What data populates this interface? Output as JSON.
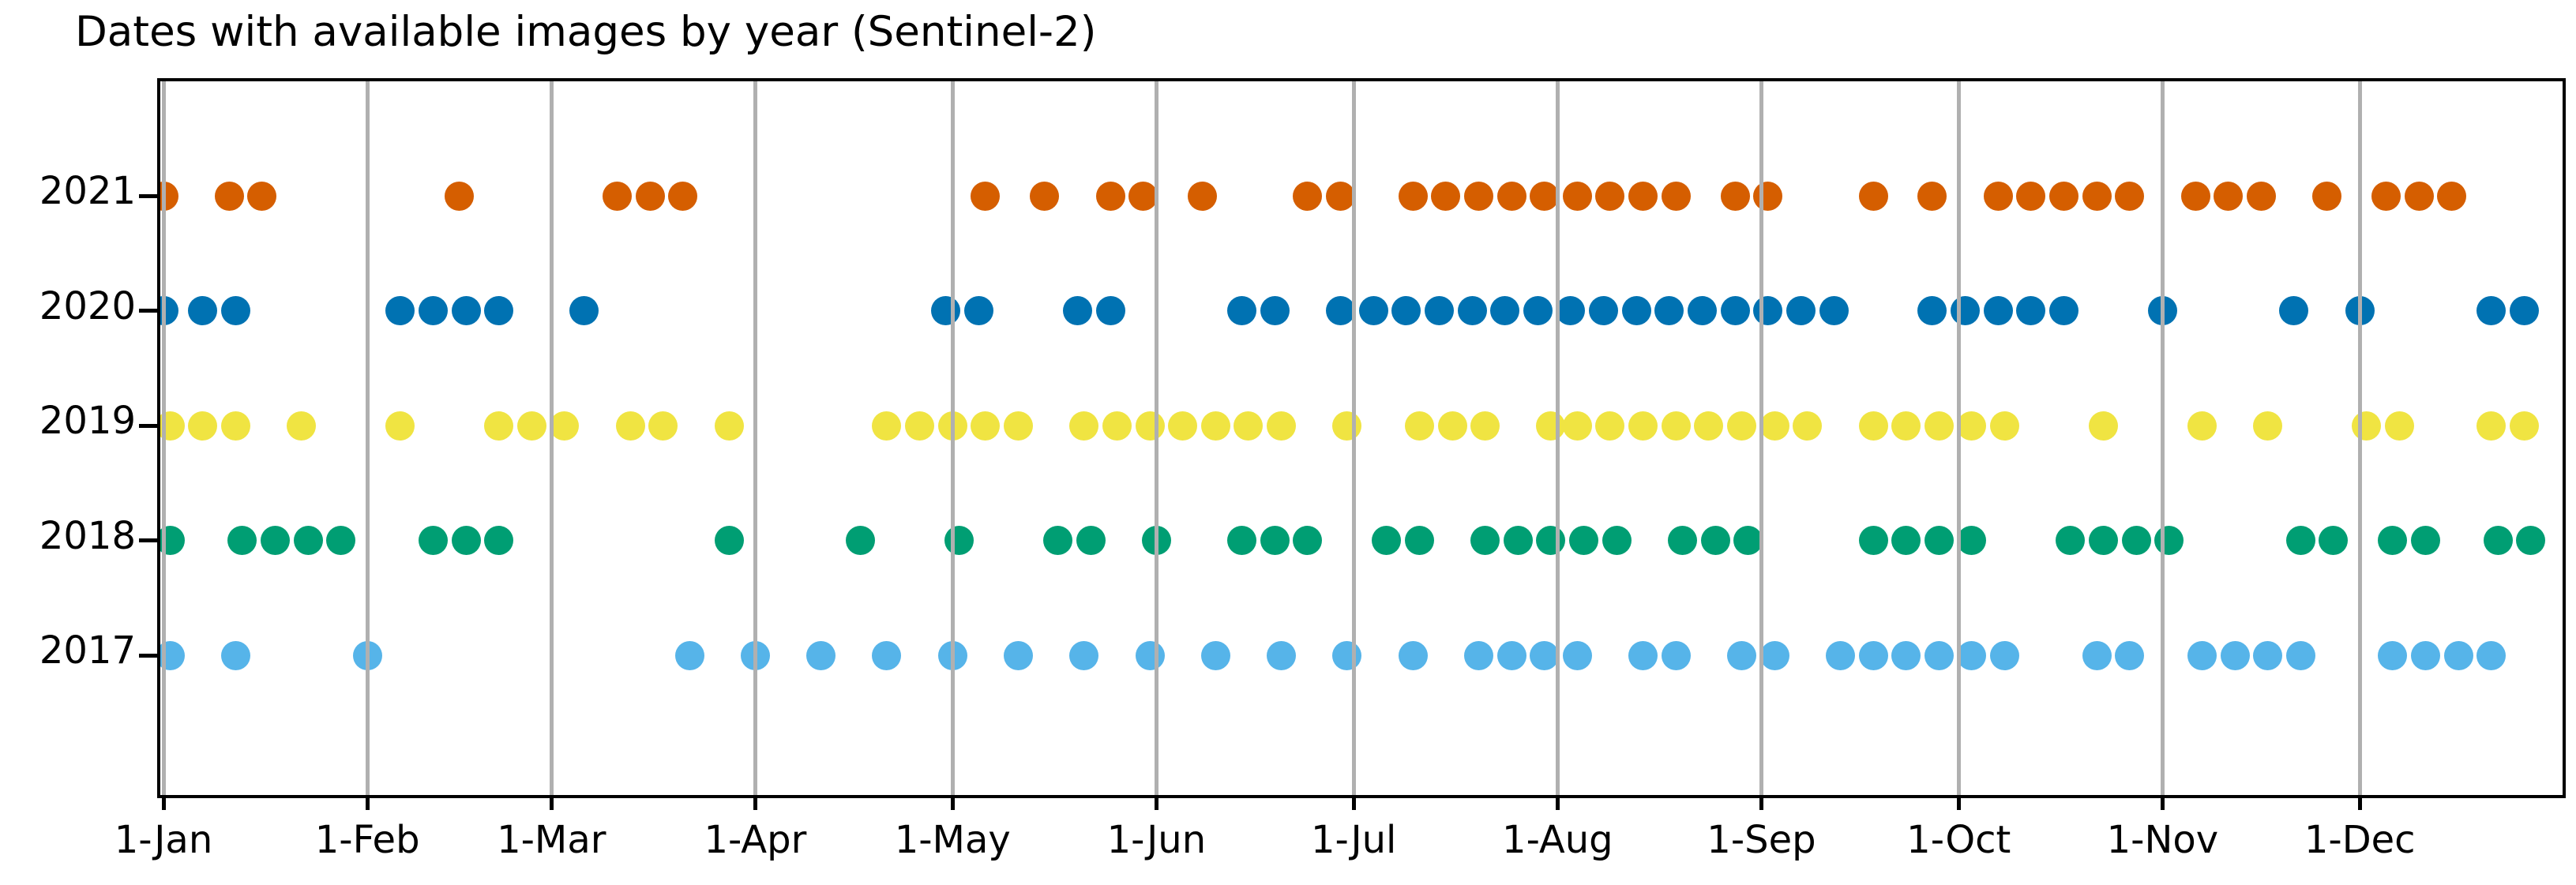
{
  "chart_data": {
    "type": "scatter",
    "title": "Dates with available images by year (Sentinel-2)",
    "xlabel": "",
    "ylabel": "",
    "grid": "vertical-month-gridlines",
    "grid_color": "#b0b0b0",
    "x_axis": {
      "tick_labels": [
        "1-Jan",
        "1-Feb",
        "1-Mar",
        "1-Apr",
        "1-May",
        "1-Jun",
        "1-Jul",
        "1-Aug",
        "1-Sep",
        "1-Oct",
        "1-Nov",
        "1-Dec"
      ]
    },
    "y_axis": {
      "tick_labels": [
        "2021",
        "2020",
        "2019",
        "2018",
        "2017"
      ]
    },
    "series": [
      {
        "name": "2021",
        "color": "#d55e00",
        "dates": [
          "1-1",
          "1-11",
          "1-16",
          "2-15",
          "3-11",
          "3-16",
          "3-21",
          "5-6",
          "5-15",
          "5-25",
          "5-30",
          "6-8",
          "6-24",
          "6-29",
          "7-10",
          "7-15",
          "7-20",
          "7-25",
          "7-30",
          "8-4",
          "8-9",
          "8-14",
          "8-19",
          "8-28",
          "9-2",
          "9-18",
          "9-27",
          "10-7",
          "10-12",
          "10-17",
          "10-22",
          "10-27",
          "11-6",
          "11-11",
          "11-16",
          "11-26",
          "12-5",
          "12-10",
          "12-15"
        ]
      },
      {
        "name": "2020",
        "color": "#0072b2",
        "dates": [
          "1-1",
          "1-7",
          "1-12",
          "2-6",
          "2-11",
          "2-16",
          "2-21",
          "3-6",
          "4-30",
          "5-5",
          "5-20",
          "5-25",
          "6-14",
          "6-19",
          "6-29",
          "7-4",
          "7-9",
          "7-14",
          "7-19",
          "7-24",
          "7-29",
          "8-3",
          "8-8",
          "8-13",
          "8-18",
          "8-23",
          "8-28",
          "9-2",
          "9-7",
          "9-12",
          "9-27",
          "10-2",
          "10-7",
          "10-12",
          "10-17",
          "11-1",
          "11-21",
          "12-1",
          "12-21",
          "12-26"
        ]
      },
      {
        "name": "2019",
        "color": "#f0e442",
        "dates": [
          "1-2",
          "1-7",
          "1-12",
          "1-22",
          "2-6",
          "2-21",
          "2-26",
          "3-3",
          "3-13",
          "3-18",
          "3-28",
          "4-21",
          "4-26",
          "5-1",
          "5-6",
          "5-11",
          "5-21",
          "5-26",
          "5-31",
          "6-5",
          "6-10",
          "6-15",
          "6-20",
          "6-30",
          "7-11",
          "7-16",
          "7-21",
          "7-31",
          "8-4",
          "8-9",
          "8-14",
          "8-19",
          "8-24",
          "8-29",
          "9-3",
          "9-8",
          "9-18",
          "9-23",
          "9-28",
          "10-3",
          "10-8",
          "10-23",
          "11-7",
          "11-17",
          "12-2",
          "12-7",
          "12-21",
          "12-26"
        ]
      },
      {
        "name": "2018",
        "color": "#009e73",
        "dates": [
          "1-2",
          "1-13",
          "1-18",
          "1-23",
          "1-28",
          "2-11",
          "2-16",
          "2-21",
          "3-28",
          "4-17",
          "5-2",
          "5-17",
          "5-22",
          "6-1",
          "6-14",
          "6-19",
          "6-24",
          "7-6",
          "7-11",
          "7-21",
          "7-26",
          "7-31",
          "8-5",
          "8-10",
          "8-20",
          "8-25",
          "8-30",
          "9-18",
          "9-23",
          "9-28",
          "10-3",
          "10-18",
          "10-23",
          "10-28",
          "11-2",
          "11-22",
          "11-27",
          "12-6",
          "12-11",
          "12-22",
          "12-27"
        ]
      },
      {
        "name": "2017",
        "color": "#56b4e9",
        "dates": [
          "1-2",
          "1-12",
          "2-1",
          "3-22",
          "4-1",
          "4-11",
          "4-21",
          "5-1",
          "5-11",
          "5-21",
          "5-31",
          "6-10",
          "6-20",
          "6-30",
          "7-10",
          "7-20",
          "7-25",
          "7-30",
          "8-4",
          "8-14",
          "8-19",
          "8-29",
          "9-3",
          "9-13",
          "9-18",
          "9-23",
          "9-28",
          "10-3",
          "10-8",
          "10-22",
          "10-27",
          "11-7",
          "11-12",
          "11-17",
          "11-22",
          "12-6",
          "12-11",
          "12-16",
          "12-21"
        ]
      }
    ]
  }
}
